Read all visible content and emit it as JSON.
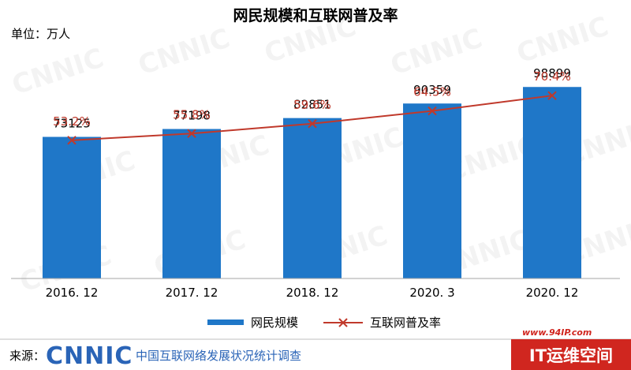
{
  "chart_data": {
    "type": "bar",
    "title": "网民规模和互联网普及率",
    "unit_label": "单位：万人",
    "categories": [
      "2016. 12",
      "2017. 12",
      "2018. 12",
      "2020. 3",
      "2020. 12"
    ],
    "series": [
      {
        "name": "网民规模",
        "type": "bar",
        "values": [
          73125,
          77198,
          82851,
          90359,
          98899
        ],
        "color": "#1f77c8"
      },
      {
        "name": "互联网普及率",
        "type": "line",
        "values": [
          53.2,
          55.8,
          59.6,
          64.5,
          70.4
        ],
        "labels": [
          "53.2%",
          "55.8%",
          "59.6%",
          "64.5%",
          "70.4%"
        ],
        "color": "#c0392b"
      }
    ],
    "ylim_bar": [
      0,
      110000
    ],
    "ylim_line": [
      0,
      82
    ],
    "legend_position": "bottom"
  },
  "footer": {
    "source_label": "来源：",
    "logo_text": "CNNIC",
    "org_name": "中国互联网络发展状况统计调查"
  },
  "watermarks": {
    "repeat_text": "CNNIC",
    "site_url": "www.94IP.com",
    "site_brand": "IT运维空间"
  }
}
